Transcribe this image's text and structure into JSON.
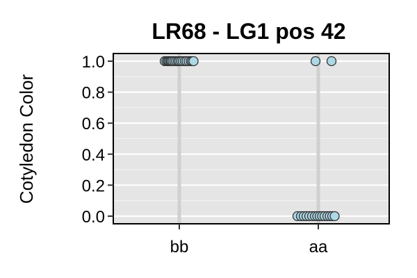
{
  "chart_data": {
    "type": "scatter",
    "title": "LR68 - LG1 pos 42",
    "xlabel": "",
    "ylabel": "Cotyledon Color",
    "categories": [
      "bb",
      "aa"
    ],
    "ylim": [
      0,
      1
    ],
    "yticks": [
      "0.0",
      "0.2",
      "0.4",
      "0.6",
      "0.8",
      "1.0"
    ],
    "grid": true,
    "background_color": "#e5e5e5",
    "grid_color": "#ffffff",
    "category_line_color": "#d0d0d0",
    "point_fill": "#add8e6",
    "point_stroke": "#333333",
    "points": [
      {
        "category": "bb",
        "jitter": -0.42,
        "y": 1
      },
      {
        "category": "bb",
        "jitter": -0.37,
        "y": 1
      },
      {
        "category": "bb",
        "jitter": -0.33,
        "y": 1
      },
      {
        "category": "bb",
        "jitter": -0.3,
        "y": 1
      },
      {
        "category": "bb",
        "jitter": -0.26,
        "y": 1
      },
      {
        "category": "bb",
        "jitter": -0.23,
        "y": 1
      },
      {
        "category": "bb",
        "jitter": -0.19,
        "y": 1
      },
      {
        "category": "bb",
        "jitter": -0.14,
        "y": 1
      },
      {
        "category": "bb",
        "jitter": -0.09,
        "y": 1
      },
      {
        "category": "bb",
        "jitter": -0.04,
        "y": 1
      },
      {
        "category": "bb",
        "jitter": 0.0,
        "y": 1
      },
      {
        "category": "bb",
        "jitter": 0.05,
        "y": 1
      },
      {
        "category": "bb",
        "jitter": 0.1,
        "y": 1
      },
      {
        "category": "bb",
        "jitter": 0.16,
        "y": 1
      },
      {
        "category": "bb",
        "jitter": 0.21,
        "y": 1
      },
      {
        "category": "bb",
        "jitter": 0.27,
        "y": 1
      },
      {
        "category": "bb",
        "jitter": 0.33,
        "y": 1
      },
      {
        "category": "bb",
        "jitter": 0.37,
        "y": 1
      },
      {
        "category": "bb",
        "jitter": 0.41,
        "y": 1
      },
      {
        "category": "aa",
        "jitter": -0.08,
        "y": 1
      },
      {
        "category": "aa",
        "jitter": 0.38,
        "y": 1
      },
      {
        "category": "aa",
        "jitter": -0.6,
        "y": 0
      },
      {
        "category": "aa",
        "jitter": -0.5,
        "y": 0
      },
      {
        "category": "aa",
        "jitter": -0.42,
        "y": 0
      },
      {
        "category": "aa",
        "jitter": -0.34,
        "y": 0
      },
      {
        "category": "aa",
        "jitter": -0.26,
        "y": 0
      },
      {
        "category": "aa",
        "jitter": -0.18,
        "y": 0
      },
      {
        "category": "aa",
        "jitter": -0.1,
        "y": 0
      },
      {
        "category": "aa",
        "jitter": -0.03,
        "y": 0
      },
      {
        "category": "aa",
        "jitter": 0.04,
        "y": 0
      },
      {
        "category": "aa",
        "jitter": 0.11,
        "y": 0
      },
      {
        "category": "aa",
        "jitter": 0.18,
        "y": 0
      },
      {
        "category": "aa",
        "jitter": 0.26,
        "y": 0
      },
      {
        "category": "aa",
        "jitter": 0.33,
        "y": 0
      },
      {
        "category": "aa",
        "jitter": 0.4,
        "y": 0
      },
      {
        "category": "aa",
        "jitter": 0.47,
        "y": 0
      }
    ]
  }
}
